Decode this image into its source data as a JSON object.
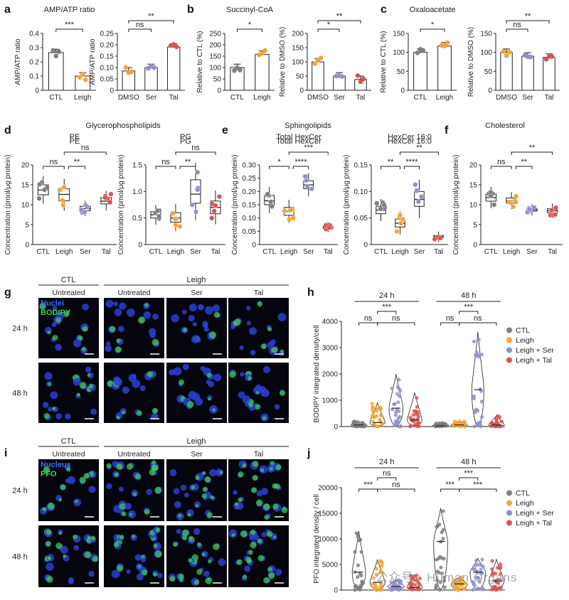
{
  "panel_letters": [
    "a",
    "b",
    "c",
    "d",
    "e",
    "f",
    "g",
    "h",
    "i",
    "j"
  ],
  "sections": {
    "glycero": "Glycerophospholipids",
    "sphingo": "Sphingolipids",
    "chol": "Cholesterol"
  },
  "colors": {
    "CTL": "#7f7f7f",
    "Leigh": "#f5a331",
    "Ser": "#8f8fd1",
    "Tal": "#d9534f"
  },
  "micro": {
    "g": {
      "col_ctl": "CTL",
      "col_leigh": "Leigh",
      "sub": [
        "Untreated",
        "Untreated",
        "Ser",
        "Tal"
      ],
      "rows": [
        "24 h",
        "48 h"
      ],
      "legend_a": "Nuclei",
      "legend_b": "BODIPY"
    },
    "i": {
      "col_ctl": "CTL",
      "col_leigh": "Leigh",
      "sub": [
        "Untreated",
        "Untreated",
        "Ser",
        "Tal"
      ],
      "rows": [
        "24 h",
        "48 h"
      ],
      "legend_a": "Nucleus",
      "legend_b": "PFO"
    }
  },
  "watermark": "公众号 · Human Organs",
  "chart_data": [
    {
      "id": "a1",
      "type": "bar",
      "title": "AMP/ATP ratio",
      "ylabel": "AMP/ATP ratio",
      "categories": [
        "CTL",
        "Leigh"
      ],
      "values": [
        0.265,
        0.1
      ],
      "ylim": [
        0,
        0.4
      ],
      "yticks": [
        "0",
        "0.1",
        "0.2",
        "0.3",
        "0.4"
      ],
      "annotations": [
        {
          "groups": [
            0,
            1
          ],
          "label": "***"
        }
      ]
    },
    {
      "id": "a2",
      "type": "bar",
      "ylabel": "AMP/ATP ratio",
      "categories": [
        "DMSO",
        "Ser",
        "Tal"
      ],
      "values": [
        0.085,
        0.1,
        0.19
      ],
      "ylim": [
        0,
        0.25
      ],
      "yticks": [
        "0",
        "0.05",
        "0.10",
        "0.15",
        "0.20",
        "0.25"
      ],
      "annotations": [
        {
          "groups": [
            0,
            1
          ],
          "label": "ns"
        },
        {
          "groups": [
            0,
            2
          ],
          "label": "**"
        }
      ]
    },
    {
      "id": "b1",
      "type": "bar",
      "title": "Succinyl-CoA",
      "ylabel": "Relative to CTL (%)",
      "categories": [
        "CTL",
        "Leigh"
      ],
      "values": [
        100,
        158
      ],
      "ylim": [
        0,
        250
      ],
      "yticks": [
        "0",
        "50",
        "100",
        "150",
        "200",
        "250"
      ],
      "annotations": [
        {
          "groups": [
            0,
            1
          ],
          "label": "*"
        }
      ]
    },
    {
      "id": "b2",
      "type": "bar",
      "ylabel": "Relative to DMSO (%)",
      "categories": [
        "DMSO",
        "Ser",
        "Tal"
      ],
      "values": [
        100,
        50,
        38
      ],
      "ylim": [
        0,
        200
      ],
      "yticks": [
        "0",
        "50",
        "100",
        "150",
        "200"
      ],
      "annotations": [
        {
          "groups": [
            0,
            1
          ],
          "label": "*"
        },
        {
          "groups": [
            0,
            2
          ],
          "label": "**"
        }
      ]
    },
    {
      "id": "c1",
      "type": "bar",
      "title": "Oxaloacetate",
      "ylabel": "Relative to CTL (%)",
      "categories": [
        "CTL",
        "Leigh"
      ],
      "values": [
        100,
        117
      ],
      "ylim": [
        0,
        150
      ],
      "yticks": [
        "0",
        "50",
        "100",
        "150"
      ],
      "annotations": [
        {
          "groups": [
            0,
            1
          ],
          "label": "*"
        }
      ]
    },
    {
      "id": "c2",
      "type": "bar",
      "ylabel": "Relative to DMSO (%)",
      "categories": [
        "DMSO",
        "Ser",
        "Tal"
      ],
      "values": [
        100,
        90,
        87
      ],
      "ylim": [
        0,
        150
      ],
      "yticks": [
        "0",
        "50",
        "100",
        "150"
      ],
      "annotations": [
        {
          "groups": [
            0,
            1
          ],
          "label": "ns"
        },
        {
          "groups": [
            0,
            2
          ],
          "label": "**"
        }
      ]
    },
    {
      "id": "d1",
      "type": "box",
      "title": "PE",
      "ylabel": "Concentration (pmol/μg protein)",
      "categories": [
        "CTL",
        "Leigh",
        "Ser",
        "Tal"
      ],
      "medians": [
        13.7,
        12.6,
        9.0,
        10.9
      ],
      "q1": [
        12.5,
        11.0,
        8.5,
        10.2
      ],
      "q3": [
        15.0,
        14.0,
        9.6,
        11.8
      ],
      "ylim": [
        0,
        20
      ],
      "yticks": [
        "0",
        "5",
        "10",
        "15",
        "20"
      ],
      "annotations": [
        {
          "groups": [
            0,
            1
          ],
          "label": "ns"
        },
        {
          "groups": [
            1,
            2
          ],
          "label": "**"
        },
        {
          "groups": [
            1,
            3
          ],
          "label": "ns"
        }
      ]
    },
    {
      "id": "d2",
      "type": "box",
      "title": "PG",
      "ylabel": "Concentration (pmol/μg protein)",
      "categories": [
        "CTL",
        "Leigh",
        "Ser",
        "Tal"
      ],
      "medians": [
        0.56,
        0.5,
        0.95,
        0.7
      ],
      "q1": [
        0.5,
        0.42,
        0.78,
        0.58
      ],
      "q3": [
        0.62,
        0.6,
        1.22,
        0.82
      ],
      "ylim": [
        0,
        1.5
      ],
      "yticks": [
        "0",
        "0.5",
        "1.0",
        "1.5"
      ],
      "annotations": [
        {
          "groups": [
            0,
            1
          ],
          "label": "ns"
        },
        {
          "groups": [
            1,
            2
          ],
          "label": "**"
        },
        {
          "groups": [
            1,
            3
          ],
          "label": "ns"
        }
      ]
    },
    {
      "id": "e1",
      "type": "box",
      "title": "Total HexCer",
      "ylabel": "Concentration (pmol/μg protein)",
      "categories": [
        "CTL",
        "Leigh",
        "Ser",
        "Tal"
      ],
      "medians": [
        0.165,
        0.125,
        0.225,
        0.065
      ],
      "q1": [
        0.15,
        0.11,
        0.21,
        0.062
      ],
      "q3": [
        0.185,
        0.14,
        0.24,
        0.07
      ],
      "ylim": [
        0,
        0.3
      ],
      "yticks": [
        "0",
        "0.05",
        "0.10",
        "0.15",
        "0.20",
        "0.25",
        "0.30"
      ],
      "annotations": [
        {
          "groups": [
            0,
            1
          ],
          "label": "*"
        },
        {
          "groups": [
            1,
            2
          ],
          "label": "****"
        },
        {
          "groups": [
            1,
            3
          ],
          "label": "***"
        }
      ]
    },
    {
      "id": "e2",
      "type": "box",
      "title": "HexCer 16:0",
      "ylabel": "Concentration (pmol/μg protein)",
      "categories": [
        "CTL",
        "Leigh",
        "Ser",
        "Tal"
      ],
      "medians": [
        0.065,
        0.04,
        0.085,
        0.015
      ],
      "q1": [
        0.058,
        0.033,
        0.072,
        0.013
      ],
      "q3": [
        0.072,
        0.048,
        0.1,
        0.017
      ],
      "ylim": [
        0,
        0.15
      ],
      "yticks": [
        "0",
        "0.05",
        "0.10",
        "0.15"
      ],
      "annotations": [
        {
          "groups": [
            0,
            1
          ],
          "label": "**"
        },
        {
          "groups": [
            1,
            2
          ],
          "label": "****"
        },
        {
          "groups": [
            1,
            3
          ],
          "label": "**"
        }
      ]
    },
    {
      "id": "f",
      "type": "box",
      "ylabel": "Concentration (pmol/μg protein)",
      "categories": [
        "CTL",
        "Leigh",
        "Ser",
        "Tal"
      ],
      "medians": [
        11.8,
        11.0,
        8.7,
        8.5
      ],
      "q1": [
        10.9,
        10.4,
        8.4,
        8.0
      ],
      "q3": [
        12.7,
        11.7,
        9.0,
        9.0
      ],
      "ylim": [
        0,
        20
      ],
      "yticks": [
        "0",
        "5",
        "10",
        "15",
        "20"
      ],
      "annotations": [
        {
          "groups": [
            0,
            1
          ],
          "label": "ns"
        },
        {
          "groups": [
            1,
            2
          ],
          "label": "**"
        },
        {
          "groups": [
            1,
            3
          ],
          "label": "**"
        }
      ]
    },
    {
      "id": "h",
      "type": "violin",
      "ylabel": "BODIPY integrated density/cell",
      "groups": [
        "24 h",
        "48 h"
      ],
      "series": [
        "CTL",
        "Leigh",
        "Leigh + Ser",
        "Leigh + Tal"
      ],
      "medians": [
        [
          60,
          150,
          700,
          250
        ],
        [
          30,
          60,
          1400,
          60
        ]
      ],
      "max": [
        [
          200,
          900,
          2000,
          1300
        ],
        [
          150,
          200,
          3600,
          420
        ]
      ],
      "ylim": [
        0,
        4000
      ],
      "yticks": [
        "0",
        "1000",
        "2000",
        "3000",
        "4000"
      ],
      "annotations": [
        [
          {
            "groups": [
              0,
              1
            ],
            "label": "ns"
          },
          {
            "groups": [
              1,
              2
            ],
            "label": "***"
          },
          {
            "groups": [
              1,
              3
            ],
            "label": "ns"
          }
        ],
        [
          {
            "groups": [
              0,
              1
            ],
            "label": "ns"
          },
          {
            "groups": [
              1,
              2
            ],
            "label": "***"
          },
          {
            "groups": [
              1,
              3
            ],
            "label": "ns"
          }
        ]
      ]
    },
    {
      "id": "j",
      "type": "violin",
      "ylabel": "PFO integrated density / cell",
      "groups": [
        "24 h",
        "48 h"
      ],
      "series": [
        "CTL",
        "Leigh",
        "Leigh + Ser",
        "Leigh + Tal"
      ],
      "medians": [
        [
          3500,
          1500,
          700,
          500
        ],
        [
          9500,
          1200,
          3500,
          1800
        ]
      ],
      "max": [
        [
          11500,
          6000,
          2000,
          3000
        ],
        [
          16000,
          2500,
          6200,
          6000
        ]
      ],
      "ylim": [
        0,
        20000
      ],
      "yticks": [
        "0",
        "5000",
        "10000",
        "15000",
        "20000"
      ],
      "annotations": [
        [
          {
            "groups": [
              0,
              1
            ],
            "label": "***"
          },
          {
            "groups": [
              1,
              2
            ],
            "label": "ns"
          },
          {
            "groups": [
              1,
              3
            ],
            "label": "ns"
          }
        ],
        [
          {
            "groups": [
              0,
              1
            ],
            "label": "***"
          },
          {
            "groups": [
              1,
              2
            ],
            "label": "***"
          },
          {
            "groups": [
              1,
              3
            ],
            "label": "***"
          }
        ]
      ]
    }
  ]
}
